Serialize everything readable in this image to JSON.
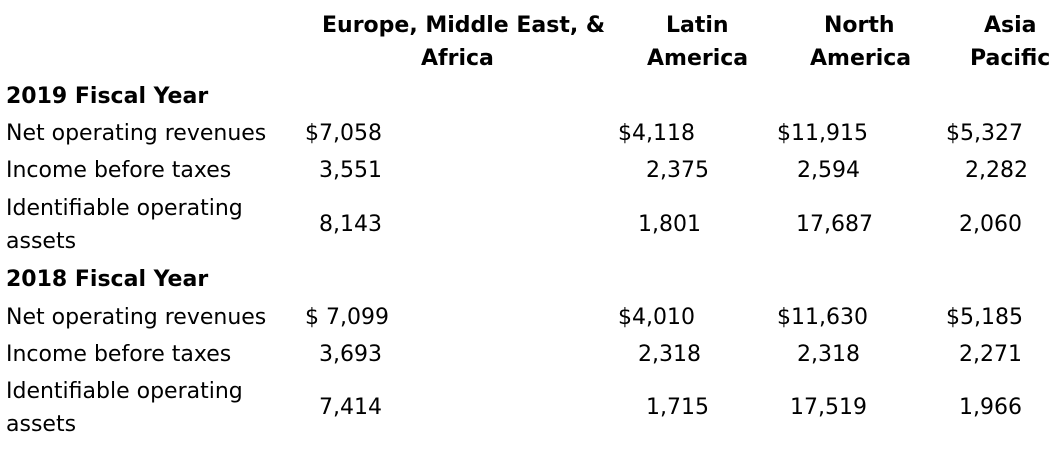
{
  "columns": [
    {
      "line1": "Europe, Middle East, &",
      "line2": "Africa"
    },
    {
      "line1": "Latin",
      "line2": "America"
    },
    {
      "line1": "North",
      "line2": "America"
    },
    {
      "line1": "Asia",
      "line2": "Pacific"
    }
  ],
  "sections": [
    {
      "title": "2019 Fiscal Year",
      "rows": [
        {
          "label": "Net operating revenues",
          "values": [
            "$7,058",
            "$4,118",
            "$11,915",
            "$5,327"
          ]
        },
        {
          "label": "Income before taxes",
          "values": [
            "3,551",
            "2,375",
            "2,594",
            "2,282"
          ]
        },
        {
          "label_line1": "Identifiable operating",
          "label_line2": "assets",
          "values": [
            "8,143",
            "1,801",
            "17,687",
            "2,060"
          ]
        }
      ]
    },
    {
      "title": "2018 Fiscal Year",
      "rows": [
        {
          "label": "Net operating revenues",
          "values": [
            "$ 7,099",
            "$4,010",
            "$11,630",
            "$5,185"
          ]
        },
        {
          "label": "Income before taxes",
          "values": [
            "3,693",
            "2,318",
            "2,318",
            "2,271"
          ]
        },
        {
          "label_line1": "Identifiable operating",
          "label_line2": "assets",
          "values": [
            "7,414",
            "1,715",
            "17,519",
            "1,966"
          ]
        }
      ]
    }
  ]
}
